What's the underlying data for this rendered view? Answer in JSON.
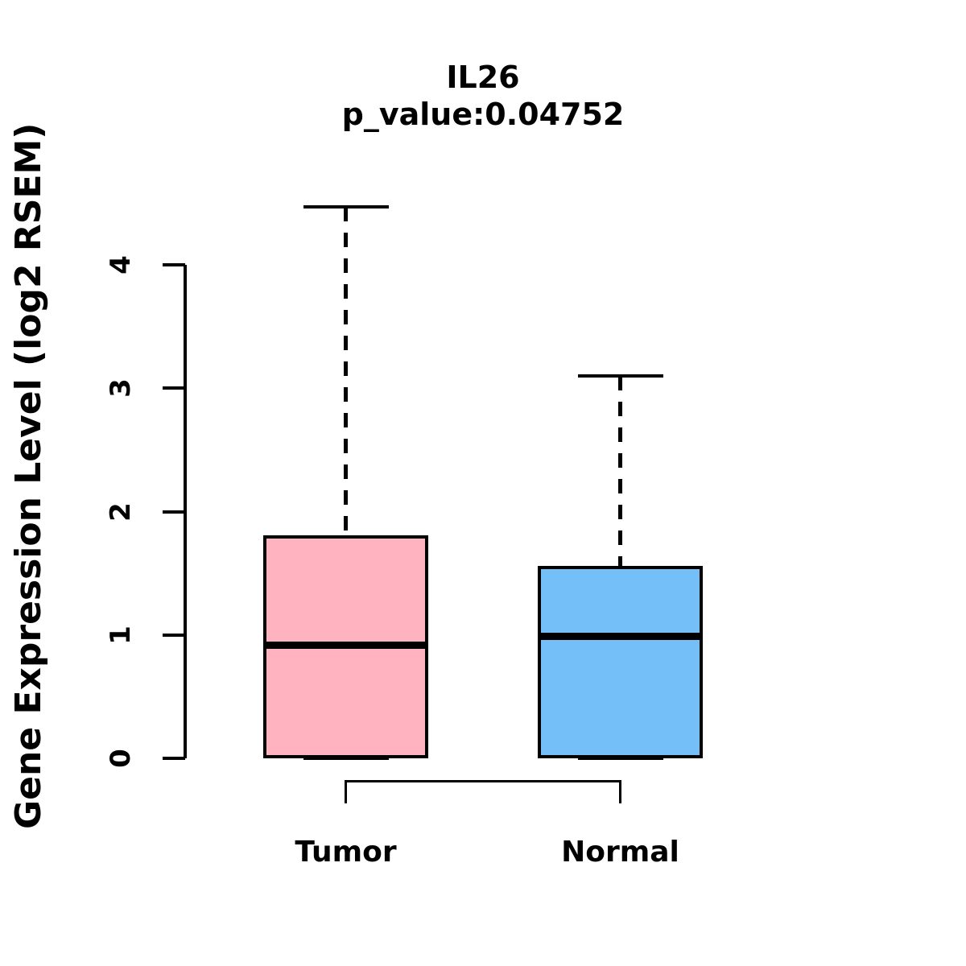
{
  "chart_data": {
    "type": "boxplot",
    "title": "IL26",
    "subtitle": "p_value:0.04752",
    "gene": "IL26",
    "p_value": 0.04752,
    "xlabel": "",
    "ylabel": "Gene Expression Level (log2 RSEM)",
    "ylim": [
      0,
      4
    ],
    "yticks": [
      "0",
      "1",
      "2",
      "3",
      "4"
    ],
    "ytick_values": [
      0,
      1,
      2,
      3,
      4
    ],
    "categories": [
      "Tumor",
      "Normal"
    ],
    "series": [
      {
        "name": "Tumor",
        "fill_color": "#FFB3C1",
        "whisker_low": 0.0,
        "q1": 0.0,
        "median": 0.92,
        "q3": 1.81,
        "whisker_high": 4.47
      },
      {
        "name": "Normal",
        "fill_color": "#74BFF7",
        "whisker_low": 0.0,
        "q1": 0.0,
        "median": 0.99,
        "q3": 1.56,
        "whisker_high": 3.1
      }
    ],
    "annotations": {
      "comparison_bracket_between": [
        "Tumor",
        "Normal"
      ]
    },
    "legend": "none",
    "grid": false,
    "background_color": "#FFFFFF",
    "line_color": "#000000",
    "whisker_style": "dashed"
  }
}
